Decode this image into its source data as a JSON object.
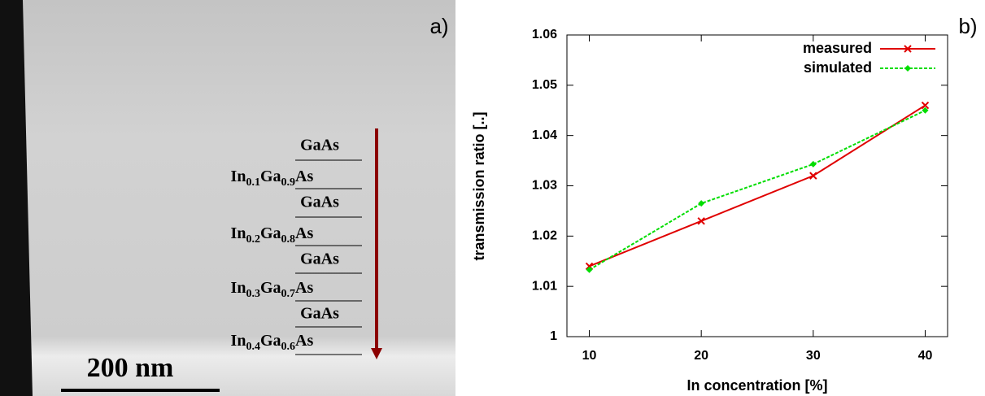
{
  "panel_a": {
    "label": "a)",
    "layers": [
      [
        "GaAs"
      ],
      [
        "In",
        "0.1",
        "Ga",
        "0.9",
        "As"
      ],
      [
        "GaAs"
      ],
      [
        "In",
        "0.2",
        "Ga",
        "0.8",
        "As"
      ],
      [
        "GaAs"
      ],
      [
        "In",
        "0.3",
        "Ga",
        "0.7",
        "As"
      ],
      [
        "GaAs"
      ],
      [
        "In",
        "0.4",
        "Ga",
        "0.6",
        "As"
      ]
    ],
    "scale_bar": "200 nm"
  },
  "chart_data": {
    "type": "line",
    "panel_label": "b)",
    "x_label": "In concentration [%]",
    "y_label": "transmission ratio [..]",
    "x": [
      10,
      20,
      30,
      40
    ],
    "series": [
      {
        "name": "measured",
        "color": "#e00000",
        "values": [
          1.014,
          1.023,
          1.032,
          1.046
        ]
      },
      {
        "name": "simulated",
        "color": "#00dd00",
        "values": [
          1.0133,
          1.0265,
          1.0343,
          1.045
        ]
      }
    ],
    "xlim": [
      8,
      42
    ],
    "xticks": [
      10,
      20,
      30,
      40
    ],
    "ylim": [
      1,
      1.06
    ],
    "yticks": [
      1,
      1.01,
      1.02,
      1.03,
      1.04,
      1.05,
      1.06
    ],
    "legend": "top-right"
  }
}
